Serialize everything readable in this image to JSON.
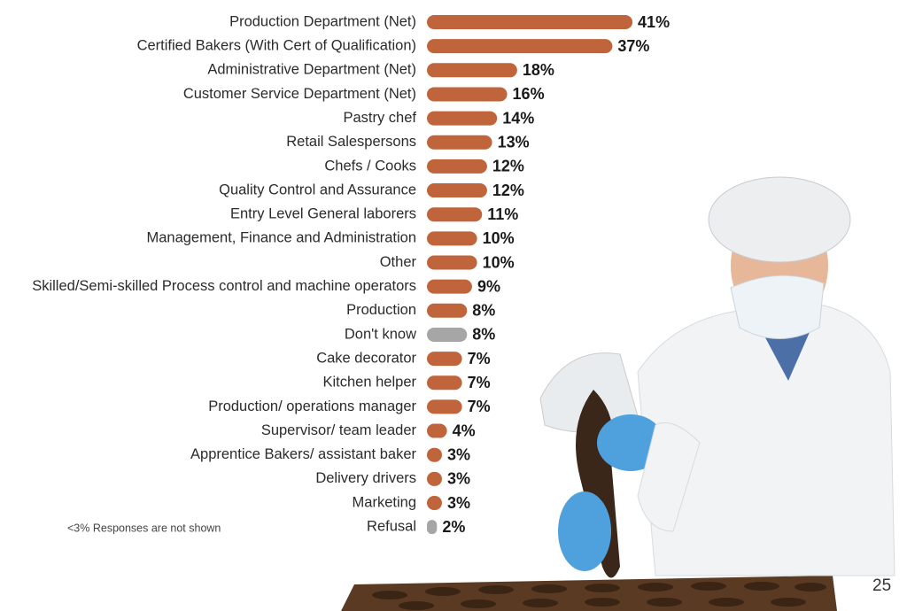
{
  "chart_data": {
    "type": "bar",
    "orientation": "horizontal",
    "categories": [
      "Production Department (Net)",
      "Certified Bakers (With Cert of Qualification)",
      "Administrative Department (Net)",
      "Customer Service Department (Net)",
      "Pastry chef",
      "Retail Salespersons",
      "Chefs / Cooks",
      "Quality Control and Assurance",
      "Entry Level General laborers",
      "Management, Finance and Administration",
      "Other",
      "Skilled/Semi-skilled Process control and machine operators",
      "Production",
      "Don't know",
      "Cake decorator",
      "Kitchen helper",
      "Production/ operations manager",
      "Supervisor/ team leader",
      "Apprentice Bakers/ assistant baker",
      "Delivery drivers",
      "Marketing",
      "Refusal"
    ],
    "values": [
      41,
      37,
      18,
      16,
      14,
      13,
      12,
      12,
      11,
      10,
      10,
      9,
      8,
      8,
      7,
      7,
      7,
      4,
      3,
      3,
      3,
      2
    ],
    "value_labels": [
      "41%",
      "37%",
      "18%",
      "16%",
      "14%",
      "13%",
      "12%",
      "12%",
      "11%",
      "10%",
      "10%",
      "9%",
      "8%",
      "8%",
      "7%",
      "7%",
      "7%",
      "4%",
      "3%",
      "3%",
      "3%",
      "2%"
    ],
    "colors": [
      "#c0643c",
      "#c0643c",
      "#c0643c",
      "#c0643c",
      "#c0643c",
      "#c0643c",
      "#c0643c",
      "#c0643c",
      "#c0643c",
      "#c0643c",
      "#c0643c",
      "#c0643c",
      "#c0643c",
      "#a6a6a6",
      "#c0643c",
      "#c0643c",
      "#c0643c",
      "#c0643c",
      "#c0643c",
      "#c0643c",
      "#c0643c",
      "#a6a6a6"
    ],
    "note": "<3% Responses are not shown"
  },
  "page_number": "25"
}
